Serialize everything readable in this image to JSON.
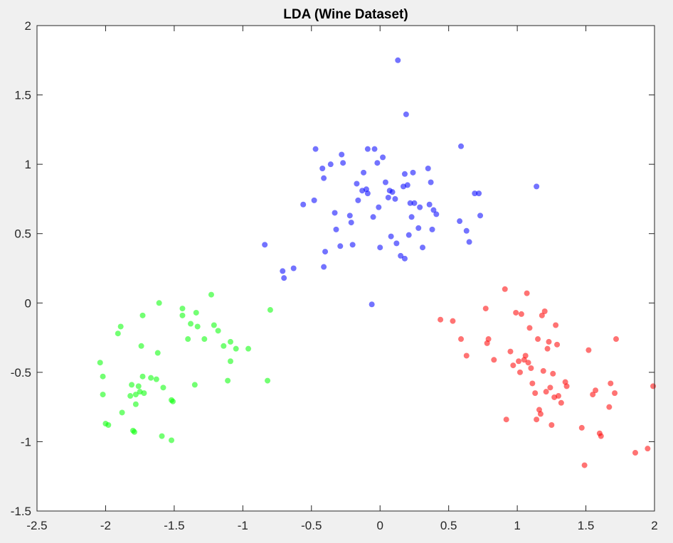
{
  "chart_data": {
    "type": "scatter",
    "title": "LDA (Wine Dataset)",
    "xlabel": "",
    "ylabel": "",
    "xlim": [
      -2.5,
      2
    ],
    "ylim": [
      -1.5,
      2
    ],
    "xticks": [
      -2.5,
      -2,
      -1.5,
      -1,
      -0.5,
      0,
      0.5,
      1,
      1.5,
      2
    ],
    "yticks": [
      -1.5,
      -1,
      -0.5,
      0,
      0.5,
      1,
      1.5,
      2
    ],
    "xtick_labels": [
      "-2.5",
      "-2",
      "-1.5",
      "-1",
      "-0.5",
      "0",
      "0.5",
      "1",
      "1.5",
      "2"
    ],
    "ytick_labels": [
      "-1.5",
      "-1",
      "-0.5",
      "0",
      "0.5",
      "1",
      "1.5",
      "2"
    ],
    "grid": false,
    "legend": "none",
    "series": [
      {
        "color": "#ff0000",
        "points": [
          [
            0.44,
            -0.12
          ],
          [
            0.53,
            -0.13
          ],
          [
            0.59,
            -0.26
          ],
          [
            0.63,
            -0.38
          ],
          [
            0.77,
            -0.04
          ],
          [
            0.78,
            -0.29
          ],
          [
            0.79,
            -0.26
          ],
          [
            0.83,
            -0.41
          ],
          [
            0.91,
            0.1
          ],
          [
            0.92,
            -0.84
          ],
          [
            0.95,
            -0.35
          ],
          [
            0.97,
            -0.45
          ],
          [
            0.99,
            -0.07
          ],
          [
            1.01,
            -0.42
          ],
          [
            1.02,
            -0.5
          ],
          [
            1.03,
            -0.08
          ],
          [
            1.05,
            -0.41
          ],
          [
            1.06,
            -0.38
          ],
          [
            1.07,
            0.07
          ],
          [
            1.08,
            -0.43
          ],
          [
            1.09,
            -0.18
          ],
          [
            1.1,
            -0.47
          ],
          [
            1.11,
            -0.58
          ],
          [
            1.13,
            -0.65
          ],
          [
            1.14,
            -0.84
          ],
          [
            1.15,
            -0.26
          ],
          [
            1.16,
            -0.77
          ],
          [
            1.17,
            -0.8
          ],
          [
            1.18,
            -0.09
          ],
          [
            1.19,
            -0.49
          ],
          [
            1.2,
            -0.06
          ],
          [
            1.21,
            -0.64
          ],
          [
            1.22,
            -0.33
          ],
          [
            1.23,
            -0.28
          ],
          [
            1.24,
            -0.61
          ],
          [
            1.25,
            -0.88
          ],
          [
            1.26,
            -0.51
          ],
          [
            1.27,
            -0.68
          ],
          [
            1.28,
            -0.16
          ],
          [
            1.29,
            -0.3
          ],
          [
            1.3,
            -0.67
          ],
          [
            1.32,
            -0.72
          ],
          [
            1.35,
            -0.57
          ],
          [
            1.36,
            -0.6
          ],
          [
            1.47,
            -0.9
          ],
          [
            1.49,
            -1.17
          ],
          [
            1.52,
            -0.34
          ],
          [
            1.55,
            -0.66
          ],
          [
            1.57,
            -0.63
          ],
          [
            1.6,
            -0.94
          ],
          [
            1.61,
            -0.96
          ],
          [
            1.67,
            -0.75
          ],
          [
            1.68,
            -0.58
          ],
          [
            1.71,
            -0.65
          ],
          [
            1.72,
            -0.26
          ],
          [
            1.86,
            -1.08
          ],
          [
            1.95,
            -1.05
          ],
          [
            1.99,
            -0.6
          ]
        ]
      },
      {
        "color": "#0000ff",
        "points": [
          [
            -0.84,
            0.42
          ],
          [
            -0.71,
            0.23
          ],
          [
            -0.7,
            0.18
          ],
          [
            -0.63,
            0.25
          ],
          [
            -0.56,
            0.71
          ],
          [
            -0.48,
            0.74
          ],
          [
            -0.47,
            1.11
          ],
          [
            -0.42,
            0.97
          ],
          [
            -0.41,
            0.9
          ],
          [
            -0.4,
            0.37
          ],
          [
            -0.41,
            0.26
          ],
          [
            -0.36,
            1.0
          ],
          [
            -0.33,
            0.65
          ],
          [
            -0.32,
            0.53
          ],
          [
            -0.29,
            0.41
          ],
          [
            -0.28,
            1.07
          ],
          [
            -0.27,
            1.01
          ],
          [
            -0.22,
            0.63
          ],
          [
            -0.21,
            0.58
          ],
          [
            -0.2,
            0.42
          ],
          [
            -0.17,
            0.86
          ],
          [
            -0.16,
            0.74
          ],
          [
            -0.13,
            0.81
          ],
          [
            -0.12,
            0.94
          ],
          [
            -0.1,
            0.82
          ],
          [
            -0.09,
            1.11
          ],
          [
            -0.09,
            0.79
          ],
          [
            -0.06,
            -0.01
          ],
          [
            -0.05,
            0.62
          ],
          [
            -0.04,
            1.11
          ],
          [
            -0.02,
            1.01
          ],
          [
            -0.01,
            0.69
          ],
          [
            0.0,
            0.4
          ],
          [
            0.02,
            1.05
          ],
          [
            0.04,
            0.87
          ],
          [
            0.06,
            0.76
          ],
          [
            0.07,
            0.81
          ],
          [
            0.08,
            0.48
          ],
          [
            0.09,
            0.8
          ],
          [
            0.11,
            0.75
          ],
          [
            0.12,
            0.43
          ],
          [
            0.13,
            1.75
          ],
          [
            0.15,
            0.34
          ],
          [
            0.17,
            0.84
          ],
          [
            0.18,
            0.32
          ],
          [
            0.18,
            0.93
          ],
          [
            0.19,
            1.36
          ],
          [
            0.2,
            0.85
          ],
          [
            0.21,
            0.49
          ],
          [
            0.22,
            0.72
          ],
          [
            0.23,
            0.62
          ],
          [
            0.24,
            0.94
          ],
          [
            0.25,
            0.72
          ],
          [
            0.28,
            0.54
          ],
          [
            0.29,
            0.69
          ],
          [
            0.31,
            0.4
          ],
          [
            0.35,
            0.97
          ],
          [
            0.36,
            0.71
          ],
          [
            0.37,
            0.87
          ],
          [
            0.38,
            0.53
          ],
          [
            0.39,
            0.67
          ],
          [
            0.41,
            0.64
          ],
          [
            0.58,
            0.59
          ],
          [
            0.59,
            1.13
          ],
          [
            0.63,
            0.52
          ],
          [
            0.65,
            0.44
          ],
          [
            0.69,
            0.79
          ],
          [
            0.72,
            0.79
          ],
          [
            0.73,
            0.63
          ],
          [
            1.14,
            0.84
          ]
        ]
      },
      {
        "color": "#00ff00",
        "points": [
          [
            -2.04,
            -0.43
          ],
          [
            -2.02,
            -0.53
          ],
          [
            -2.02,
            -0.66
          ],
          [
            -2.0,
            -0.87
          ],
          [
            -1.98,
            -0.88
          ],
          [
            -1.91,
            -0.22
          ],
          [
            -1.89,
            -0.17
          ],
          [
            -1.88,
            -0.79
          ],
          [
            -1.82,
            -0.67
          ],
          [
            -1.81,
            -0.59
          ],
          [
            -1.8,
            -0.92
          ],
          [
            -1.79,
            -0.93
          ],
          [
            -1.78,
            -0.73
          ],
          [
            -1.78,
            -0.66
          ],
          [
            -1.76,
            -0.6
          ],
          [
            -1.75,
            -0.64
          ],
          [
            -1.73,
            -0.09
          ],
          [
            -1.74,
            -0.31
          ],
          [
            -1.73,
            -0.53
          ],
          [
            -1.72,
            -0.65
          ],
          [
            -1.67,
            -0.54
          ],
          [
            -1.63,
            -0.55
          ],
          [
            -1.62,
            -0.36
          ],
          [
            -1.61,
            0.0
          ],
          [
            -1.59,
            -0.96
          ],
          [
            -1.58,
            -0.61
          ],
          [
            -1.52,
            -0.7
          ],
          [
            -1.52,
            -0.99
          ],
          [
            -1.51,
            -0.71
          ],
          [
            -1.44,
            -0.04
          ],
          [
            -1.44,
            -0.09
          ],
          [
            -1.4,
            -0.26
          ],
          [
            -1.38,
            -0.15
          ],
          [
            -1.35,
            -0.59
          ],
          [
            -1.34,
            -0.07
          ],
          [
            -1.33,
            -0.17
          ],
          [
            -1.28,
            -0.26
          ],
          [
            -1.23,
            0.06
          ],
          [
            -1.21,
            -0.16
          ],
          [
            -1.18,
            -0.2
          ],
          [
            -1.14,
            -0.31
          ],
          [
            -1.11,
            -0.56
          ],
          [
            -1.09,
            -0.28
          ],
          [
            -1.09,
            -0.42
          ],
          [
            -1.05,
            -0.33
          ],
          [
            -0.96,
            -0.33
          ],
          [
            -0.82,
            -0.56
          ],
          [
            -0.8,
            -0.05
          ]
        ]
      }
    ]
  }
}
